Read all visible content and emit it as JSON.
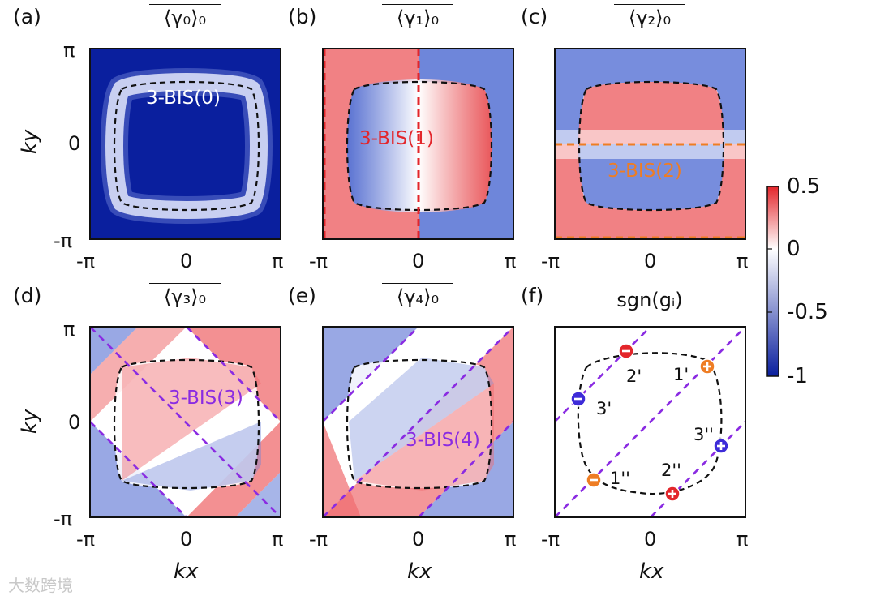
{
  "panels": [
    {
      "id": "a",
      "label": "(a)",
      "title": "⟨γ₀⟩₀",
      "bis_label": "3-BIS(0)",
      "bis_color": "#ffffff"
    },
    {
      "id": "b",
      "label": "(b)",
      "title": "⟨γ₁⟩₀",
      "bis_label": "3-BIS(1)",
      "bis_color": "#e3262b"
    },
    {
      "id": "c",
      "label": "(c)",
      "title": "⟨γ₂⟩₀",
      "bis_label": "3-BIS(2)",
      "bis_color": "#ee7d24"
    },
    {
      "id": "d",
      "label": "(d)",
      "title": "⟨γ₃⟩₀",
      "bis_label": "3-BIS(3)",
      "bis_color": "#8a2be2"
    },
    {
      "id": "e",
      "label": "(e)",
      "title": "⟨γ₄⟩₀",
      "bis_label": "3-BIS(4)",
      "bis_color": "#8a2be2"
    },
    {
      "id": "f",
      "label": "(f)",
      "title": "sgn(gᵢ)",
      "bis_label": "",
      "bis_color": "#8a2be2"
    }
  ],
  "axes": {
    "x_label": "kx",
    "y_label": "ky",
    "x_ticks": [
      "-π",
      "0",
      "π"
    ],
    "y_ticks": [
      "π",
      "0",
      "-π"
    ]
  },
  "colorbar": {
    "ticks": [
      "0.5",
      "0",
      "-0.5",
      "-1"
    ],
    "min": -1,
    "max": 0.5,
    "colors": {
      "high": "#e3262b",
      "mid": "#ffffff",
      "low": "#0a1f9e"
    }
  },
  "chart_data": {
    "type": "heatmap",
    "x_range": [
      "-π",
      "π"
    ],
    "y_range": [
      "-π",
      "π"
    ],
    "value_range": [
      -1,
      0.5
    ],
    "markers": [
      {
        "label": "1'",
        "sign": "+",
        "color": "#ee7d24"
      },
      {
        "label": "2'",
        "sign": "-",
        "color": "#e3262b"
      },
      {
        "label": "3'",
        "sign": "-",
        "color": "#3d2bd8"
      },
      {
        "label": "1''",
        "sign": "-",
        "color": "#ee7d24"
      },
      {
        "label": "2''",
        "sign": "+",
        "color": "#e3262b"
      },
      {
        "label": "3''",
        "sign": "+",
        "color": "#3d2bd8"
      }
    ]
  },
  "watermark": "大数跨境"
}
